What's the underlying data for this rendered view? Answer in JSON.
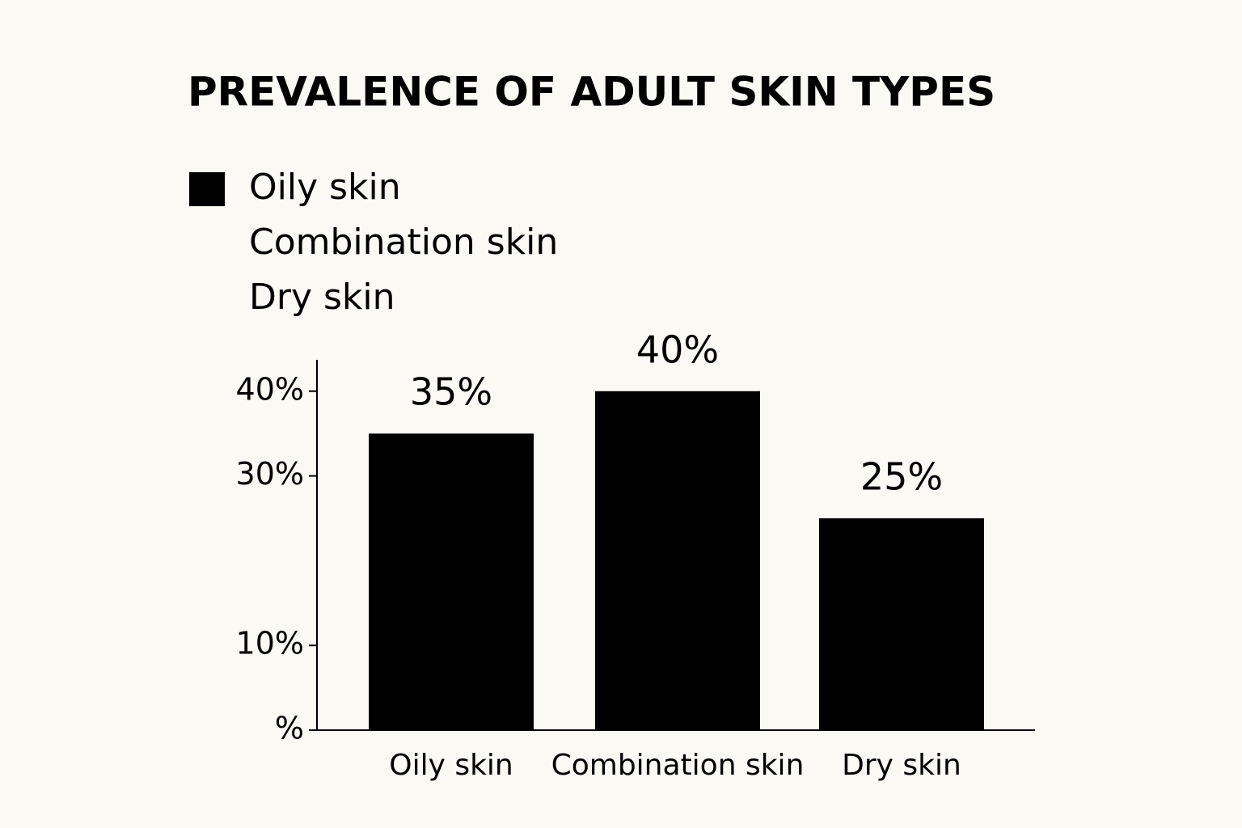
{
  "chart_data": {
    "type": "bar",
    "title": "PREVALENCE OF ADULT SKIN TYPES",
    "legend_entries": [
      "Oily skin",
      "Combination skin",
      "Dry skin"
    ],
    "categories": [
      "Oily skin",
      "Combination skin",
      "Dry skin"
    ],
    "values": [
      35,
      40,
      25
    ],
    "value_labels": [
      "35%",
      "40%",
      "25%"
    ],
    "color": "#000000",
    "ylim": [
      0,
      43.7
    ],
    "yticks": [
      {
        "value": 0,
        "label": "%"
      },
      {
        "value": 10,
        "label": "10%"
      },
      {
        "value": 30,
        "label": "30%"
      },
      {
        "value": 40,
        "label": "40%"
      }
    ]
  }
}
